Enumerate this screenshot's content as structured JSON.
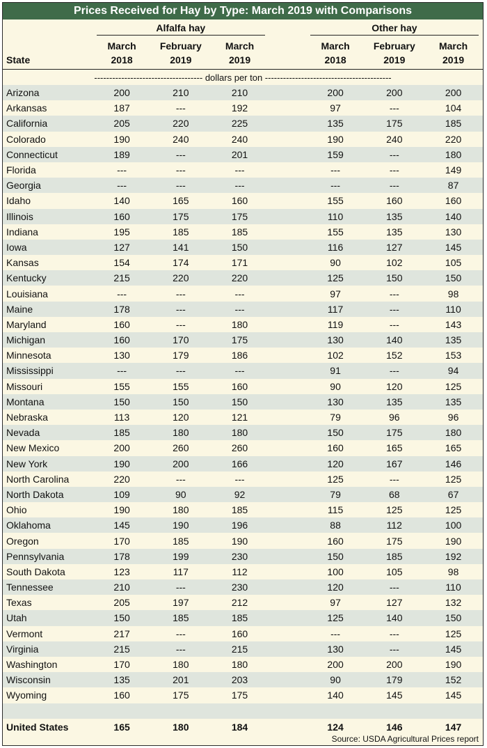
{
  "title": "Prices Received for Hay by Type: March 2019 with Comparisons",
  "groups": {
    "alfalfa": "Alfalfa hay",
    "other": "Other hay"
  },
  "columns": {
    "state": "State",
    "mar18": [
      "March",
      "2018"
    ],
    "feb19": [
      "February",
      "2019"
    ],
    "mar19": [
      "March",
      "2019"
    ]
  },
  "units": "------------------------------------ dollars per ton ------------------------------------------",
  "rows": [
    {
      "state": "Arizona",
      "a": [
        "200",
        "210",
        "210"
      ],
      "o": [
        "200",
        "200",
        "200"
      ]
    },
    {
      "state": "Arkansas",
      "a": [
        "187",
        "---",
        "192"
      ],
      "o": [
        "97",
        "---",
        "104"
      ]
    },
    {
      "state": "California",
      "a": [
        "205",
        "220",
        "225"
      ],
      "o": [
        "135",
        "175",
        "185"
      ]
    },
    {
      "state": "Colorado",
      "a": [
        "190",
        "240",
        "240"
      ],
      "o": [
        "190",
        "240",
        "220"
      ]
    },
    {
      "state": "Connecticut",
      "a": [
        "189",
        "---",
        "201"
      ],
      "o": [
        "159",
        "---",
        "180"
      ]
    },
    {
      "state": "Florida",
      "a": [
        "---",
        "---",
        "---"
      ],
      "o": [
        "---",
        "---",
        "149"
      ]
    },
    {
      "state": "Georgia",
      "a": [
        "---",
        "---",
        "---"
      ],
      "o": [
        "---",
        "---",
        "87"
      ]
    },
    {
      "state": "Idaho",
      "a": [
        "140",
        "165",
        "160"
      ],
      "o": [
        "155",
        "160",
        "160"
      ]
    },
    {
      "state": "Illinois",
      "a": [
        "160",
        "175",
        "175"
      ],
      "o": [
        "110",
        "135",
        "140"
      ]
    },
    {
      "state": "Indiana",
      "a": [
        "195",
        "185",
        "185"
      ],
      "o": [
        "155",
        "135",
        "130"
      ]
    },
    {
      "state": "Iowa",
      "a": [
        "127",
        "141",
        "150"
      ],
      "o": [
        "116",
        "127",
        "145"
      ]
    },
    {
      "state": "Kansas",
      "a": [
        "154",
        "174",
        "171"
      ],
      "o": [
        "90",
        "102",
        "105"
      ]
    },
    {
      "state": "Kentucky",
      "a": [
        "215",
        "220",
        "220"
      ],
      "o": [
        "125",
        "150",
        "150"
      ]
    },
    {
      "state": "Louisiana",
      "a": [
        "---",
        "---",
        "---"
      ],
      "o": [
        "97",
        "---",
        "98"
      ]
    },
    {
      "state": "Maine",
      "a": [
        "178",
        "---",
        "---"
      ],
      "o": [
        "117",
        "---",
        "110"
      ]
    },
    {
      "state": "Maryland",
      "a": [
        "160",
        "---",
        "180"
      ],
      "o": [
        "119",
        "---",
        "143"
      ]
    },
    {
      "state": "Michigan",
      "a": [
        "160",
        "170",
        "175"
      ],
      "o": [
        "130",
        "140",
        "135"
      ]
    },
    {
      "state": "Minnesota",
      "a": [
        "130",
        "179",
        "186"
      ],
      "o": [
        "102",
        "152",
        "153"
      ]
    },
    {
      "state": "Mississippi",
      "a": [
        "---",
        "---",
        "---"
      ],
      "o": [
        "91",
        "---",
        "94"
      ]
    },
    {
      "state": "Missouri",
      "a": [
        "155",
        "155",
        "160"
      ],
      "o": [
        "90",
        "120",
        "125"
      ]
    },
    {
      "state": "Montana",
      "a": [
        "150",
        "150",
        "150"
      ],
      "o": [
        "130",
        "135",
        "135"
      ]
    },
    {
      "state": "Nebraska",
      "a": [
        "113",
        "120",
        "121"
      ],
      "o": [
        "79",
        "96",
        "96"
      ]
    },
    {
      "state": "Nevada",
      "a": [
        "185",
        "180",
        "180"
      ],
      "o": [
        "150",
        "175",
        "180"
      ]
    },
    {
      "state": "New Mexico",
      "a": [
        "200",
        "260",
        "260"
      ],
      "o": [
        "160",
        "165",
        "165"
      ]
    },
    {
      "state": "New York",
      "a": [
        "190",
        "200",
        "166"
      ],
      "o": [
        "120",
        "167",
        "146"
      ]
    },
    {
      "state": "North Carolina",
      "a": [
        "220",
        "---",
        "---"
      ],
      "o": [
        "125",
        "---",
        "125"
      ]
    },
    {
      "state": "North Dakota",
      "a": [
        "109",
        "90",
        "92"
      ],
      "o": [
        "79",
        "68",
        "67"
      ]
    },
    {
      "state": "Ohio",
      "a": [
        "190",
        "180",
        "185"
      ],
      "o": [
        "115",
        "125",
        "125"
      ]
    },
    {
      "state": "Oklahoma",
      "a": [
        "145",
        "190",
        "196"
      ],
      "o": [
        "88",
        "112",
        "100"
      ]
    },
    {
      "state": "Oregon",
      "a": [
        "170",
        "185",
        "190"
      ],
      "o": [
        "160",
        "175",
        "190"
      ]
    },
    {
      "state": "Pennsylvania",
      "a": [
        "178",
        "199",
        "230"
      ],
      "o": [
        "150",
        "185",
        "192"
      ]
    },
    {
      "state": "South Dakota",
      "a": [
        "123",
        "117",
        "112"
      ],
      "o": [
        "100",
        "105",
        "98"
      ]
    },
    {
      "state": "Tennessee",
      "a": [
        "210",
        "---",
        "230"
      ],
      "o": [
        "120",
        "---",
        "110"
      ]
    },
    {
      "state": "Texas",
      "a": [
        "205",
        "197",
        "212"
      ],
      "o": [
        "97",
        "127",
        "132"
      ]
    },
    {
      "state": "Utah",
      "a": [
        "150",
        "185",
        "185"
      ],
      "o": [
        "125",
        "140",
        "150"
      ]
    },
    {
      "state": "Vermont",
      "a": [
        "217",
        "---",
        "160"
      ],
      "o": [
        "---",
        "---",
        "125"
      ]
    },
    {
      "state": "Virginia",
      "a": [
        "215",
        "---",
        "215"
      ],
      "o": [
        "130",
        "---",
        "145"
      ]
    },
    {
      "state": "Washington",
      "a": [
        "170",
        "180",
        "180"
      ],
      "o": [
        "200",
        "200",
        "190"
      ]
    },
    {
      "state": "Wisconsin",
      "a": [
        "135",
        "201",
        "203"
      ],
      "o": [
        "90",
        "179",
        "152"
      ]
    },
    {
      "state": "Wyoming",
      "a": [
        "160",
        "175",
        "175"
      ],
      "o": [
        "140",
        "145",
        "145"
      ]
    }
  ],
  "us_total": {
    "state": "United States",
    "a": [
      "165",
      "180",
      "184"
    ],
    "o": [
      "124",
      "146",
      "147"
    ]
  },
  "source": "Source: USDA Agricultural Prices report",
  "colors": {
    "title_bg": "#3f6b49",
    "band": "#dfe5dd",
    "paper": "#fbf7e3"
  }
}
